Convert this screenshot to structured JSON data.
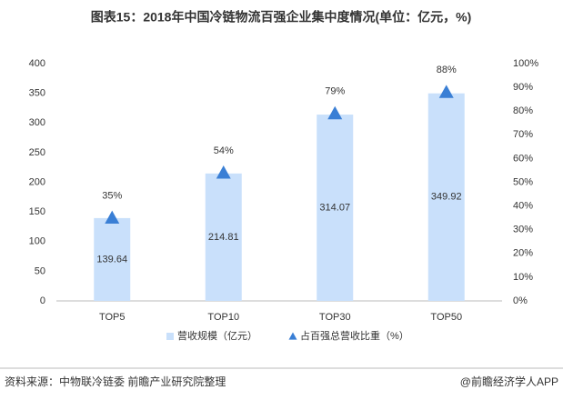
{
  "chart_data": {
    "type": "bar",
    "title": "图表15：2018年中国冷链物流百强企业集中度情况(单位：亿元，%)",
    "categories": [
      "TOP5",
      "TOP10",
      "TOP30",
      "TOP50"
    ],
    "series": [
      {
        "name": "营收规模（亿元）",
        "type": "bar",
        "color": "#c9e0fb",
        "values": [
          139.64,
          214.81,
          314.07,
          349.92
        ]
      },
      {
        "name": "占百强总营收比重（%）",
        "type": "scatter",
        "axis": "y2",
        "color": "#3a7fd5",
        "values": [
          35,
          54,
          79,
          88
        ],
        "value_labels": [
          "35%",
          "54%",
          "79%",
          "88%"
        ]
      }
    ],
    "ylim": [
      0,
      400
    ],
    "yticks": [
      0,
      50,
      100,
      150,
      200,
      250,
      300,
      350,
      400
    ],
    "y2lim": [
      0,
      100
    ],
    "y2ticks": [
      {
        "value": 0,
        "label": "0%"
      },
      {
        "value": 10,
        "label": "10%"
      },
      {
        "value": 20,
        "label": "20%"
      },
      {
        "value": 30,
        "label": "30%"
      },
      {
        "value": 40,
        "label": "40%"
      },
      {
        "value": 50,
        "label": "50%"
      },
      {
        "value": 60,
        "label": "60%"
      },
      {
        "value": 70,
        "label": "70%"
      },
      {
        "value": 80,
        "label": "80%"
      },
      {
        "value": 90,
        "label": "90%"
      },
      {
        "value": 100,
        "label": "100%"
      }
    ],
    "grid": false,
    "source": "资料来源：中物联冷链委 前瞻产业研究院整理",
    "footer": "@前瞻经济学人APP"
  }
}
